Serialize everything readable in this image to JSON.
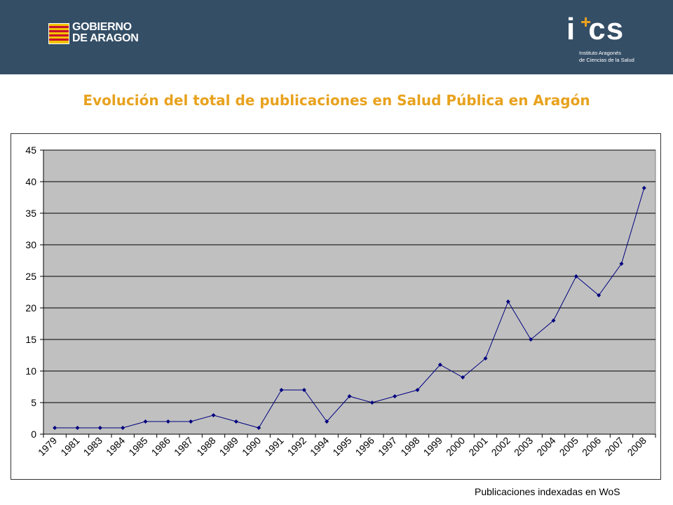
{
  "header": {
    "logo_left_text_1": "GOBIERNO",
    "logo_left_text_2": "DE ARAGON",
    "logo_right_mark": "i",
    "logo_right_mark_2": "cs",
    "logo_right_sub_1": "Instituto Aragonés",
    "logo_right_sub_2": "de Ciencias de la Salud",
    "bg_color": "#344e66"
  },
  "title": "Evolución del total de publicaciones en Salud Pública en Aragón",
  "footer_note": "Publicaciones indexadas en WoS",
  "chart_data": {
    "type": "line",
    "title": "Evolución del total de publicaciones en Salud Pública en Aragón",
    "xlabel": "",
    "ylabel": "",
    "ylim": [
      0,
      45
    ],
    "yticks": [
      0,
      5,
      10,
      15,
      20,
      25,
      30,
      35,
      40,
      45
    ],
    "grid": true,
    "legend": "none",
    "series_color": "#000080",
    "plot_bg": "#c0c0c0",
    "categories": [
      "1979",
      "1981",
      "1983",
      "1984",
      "1985",
      "1986",
      "1987",
      "1988",
      "1989",
      "1990",
      "1991",
      "1992",
      "1994",
      "1995",
      "1996",
      "1997",
      "1998",
      "1999",
      "2000",
      "2001",
      "2002",
      "2003",
      "2004",
      "2005",
      "2006",
      "2007",
      "2008"
    ],
    "values": [
      1,
      1,
      1,
      1,
      2,
      2,
      2,
      3,
      2,
      1,
      7,
      7,
      2,
      6,
      5,
      6,
      7,
      11,
      9,
      12,
      21,
      15,
      18,
      25,
      22,
      27,
      39
    ]
  }
}
